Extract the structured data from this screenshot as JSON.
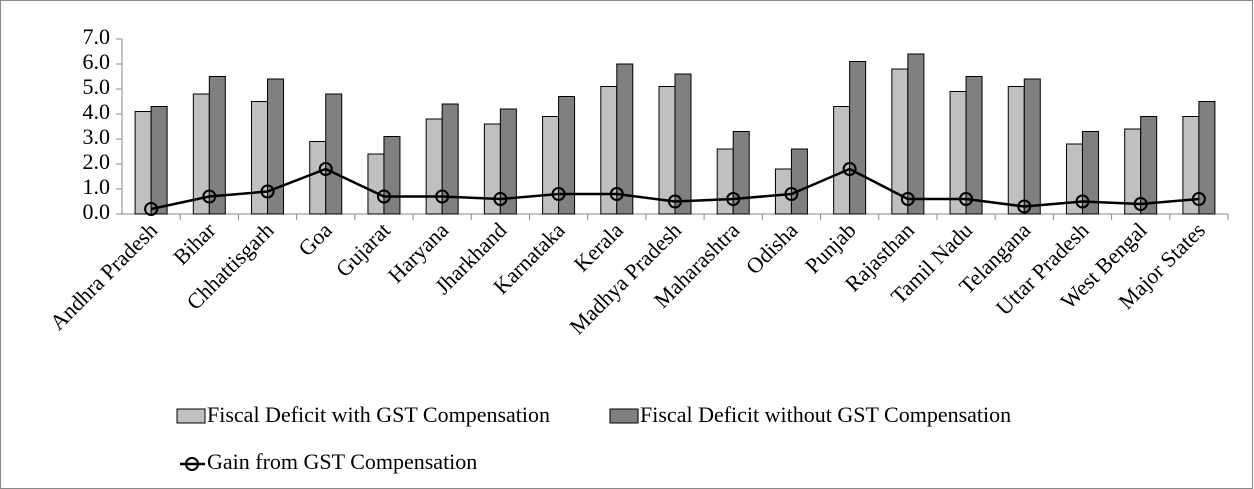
{
  "chart_data": {
    "type": "bar",
    "categories": [
      "Andhra Pradesh",
      "Bihar",
      "Chhattisgarh",
      "Goa",
      "Gujarat",
      "Haryana",
      "Jharkhand",
      "Karnataka",
      "Kerala",
      "Madhya Pradesh",
      "Maharashtra",
      "Odisha",
      "Punjab",
      "Rajasthan",
      "Tamil Nadu",
      "Telangana",
      "Uttar Pradesh",
      "West Bengal",
      "Major States"
    ],
    "series": [
      {
        "name": "Fiscal Deficit with GST Compensation",
        "color": "#c0c0c0",
        "values": [
          4.1,
          4.8,
          4.5,
          2.9,
          2.4,
          3.8,
          3.6,
          3.9,
          5.1,
          5.1,
          2.6,
          1.8,
          4.3,
          5.8,
          4.9,
          5.1,
          2.8,
          3.4,
          3.9
        ]
      },
      {
        "name": "Fiscal Deficit without GST Compensation",
        "color": "#808080",
        "values": [
          4.3,
          5.5,
          5.4,
          4.8,
          3.1,
          4.4,
          4.2,
          4.7,
          6.0,
          5.6,
          3.3,
          2.6,
          6.1,
          6.4,
          5.5,
          5.4,
          3.3,
          3.9,
          4.5
        ]
      },
      {
        "name": "Gain from GST Compensation",
        "type": "line",
        "color": "#000000",
        "values": [
          0.2,
          0.7,
          0.9,
          1.8,
          0.7,
          0.7,
          0.6,
          0.8,
          0.8,
          0.5,
          0.6,
          0.8,
          1.8,
          0.6,
          0.6,
          0.3,
          0.5,
          0.4,
          0.6
        ]
      }
    ],
    "ylim": [
      0,
      7
    ],
    "yticks": [
      {
        "value": 0,
        "label": "0.0"
      },
      {
        "value": 1,
        "label": "1.0"
      },
      {
        "value": 2,
        "label": "2.0"
      },
      {
        "value": 3,
        "label": "3.0"
      },
      {
        "value": 4,
        "label": "4.0"
      },
      {
        "value": 5,
        "label": "5.0"
      },
      {
        "value": 6,
        "label": "6.0"
      },
      {
        "value": 7,
        "label": "7.0"
      }
    ],
    "grid": false
  }
}
